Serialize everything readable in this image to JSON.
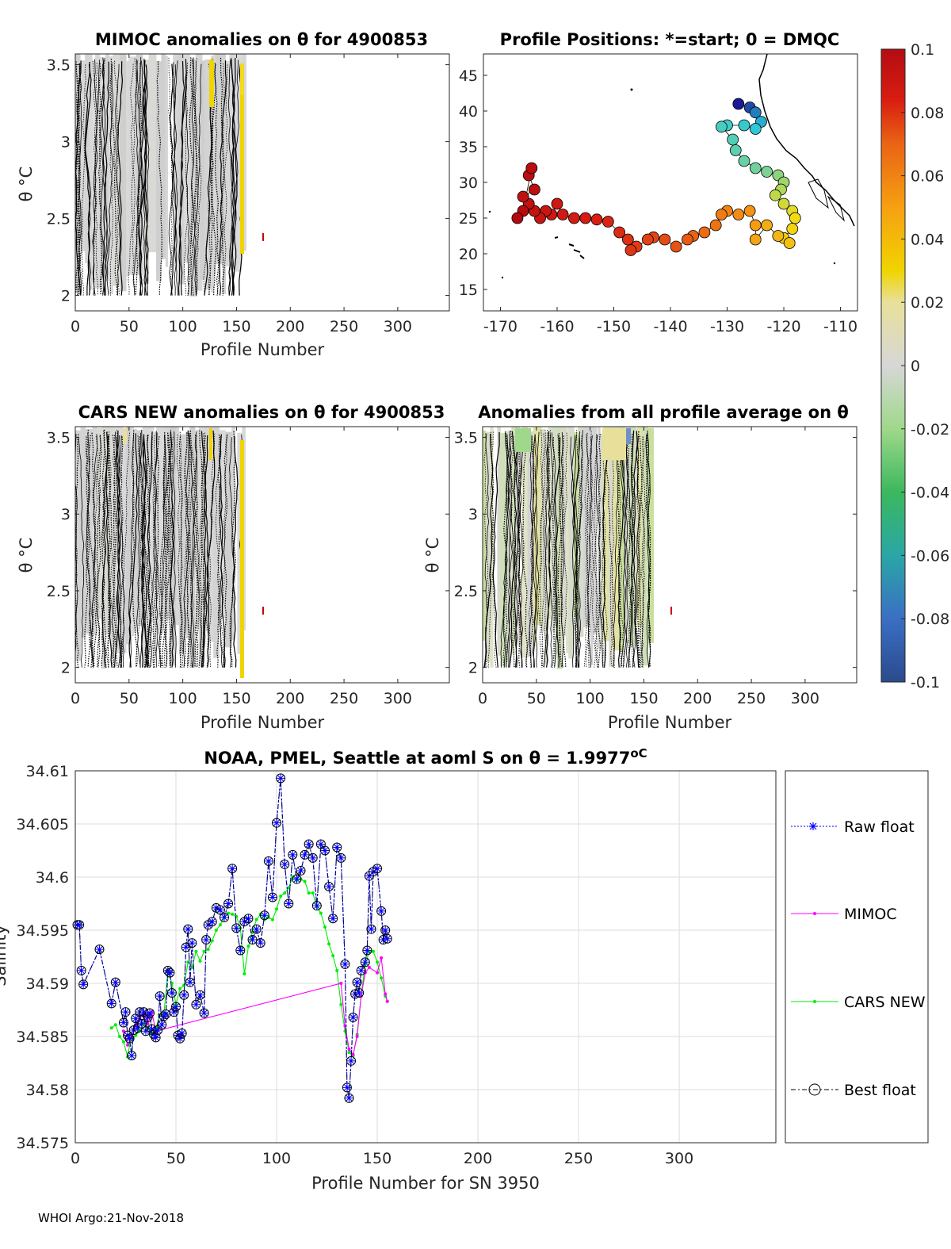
{
  "colors": {
    "raw": "#0000ff",
    "mimoc": "#ff00ff",
    "cars": "#00ee00",
    "best": "#000000"
  },
  "panels": {
    "mimoc": {
      "title": "MIMOC anomalies on θ  for 4900853",
      "xlabel": "Profile Number",
      "ylabel": "θ °C",
      "xticks": [
        "0",
        "50",
        "100",
        "150",
        "200",
        "250",
        "300"
      ],
      "yticks": [
        "3.5",
        "3",
        "2.5",
        "2"
      ]
    },
    "positions": {
      "title": "Profile Positions: *=start; 0 = DMQC",
      "xticks": [
        "-170",
        "-160",
        "-150",
        "-140",
        "-130",
        "-120",
        "-110"
      ],
      "yticks": [
        "45",
        "40",
        "35",
        "30",
        "25",
        "20",
        "15"
      ]
    },
    "cars": {
      "title": "CARS NEW anomalies on θ for 4900853",
      "xlabel": "Profile Number",
      "ylabel": "θ °C",
      "xticks": [
        "0",
        "50",
        "100",
        "150",
        "200",
        "250",
        "300"
      ],
      "yticks": [
        "3.5",
        "3",
        "2.5",
        "2"
      ]
    },
    "allavg": {
      "title": "Anomalies from all profile average on θ",
      "xlabel": "Profile Number",
      "ylabel": "θ °C",
      "xticks": [
        "0",
        "50",
        "100",
        "150",
        "200",
        "250",
        "300"
      ],
      "yticks": [
        "3.5",
        "3",
        "2.5",
        "2"
      ]
    }
  },
  "colorbar": {
    "ticks": [
      "0.1",
      "0.08",
      "0.06",
      "0.04",
      "0.02",
      "0",
      "-0.02",
      "-0.04",
      "-0.06",
      "-0.08",
      "-0.1"
    ]
  },
  "legend": {
    "raw": "Raw float",
    "mimoc": "MIMOC",
    "cars": "CARS NEW",
    "best": "Best float"
  },
  "footer": "WHOI Argo:21-Nov-2018",
  "chart_data": {
    "type": "line",
    "title": "NOAA, PMEL, Seattle at aoml S on θ = 1.9977",
    "title_unit": "oC",
    "xlabel": "Profile Number for SN 3950",
    "ylabel": "Salinity",
    "xlim": [
      0,
      348
    ],
    "ylim": [
      34.575,
      34.61
    ],
    "xticks": [
      "0",
      "50",
      "100",
      "150",
      "200",
      "250",
      "300"
    ],
    "yticks": [
      "34.61",
      "34.605",
      "34.6",
      "34.595",
      "34.59",
      "34.585",
      "34.58",
      "34.575"
    ],
    "grid": true,
    "legend_position": "right",
    "series": [
      {
        "name": "Raw float",
        "x": [
          1,
          2,
          3,
          4,
          12,
          18,
          20,
          24,
          25,
          26,
          27,
          28,
          29,
          30,
          31,
          32,
          33,
          34,
          35,
          36,
          37,
          38,
          39,
          40,
          41,
          42,
          43,
          44,
          45,
          46,
          47,
          48,
          49,
          50,
          51,
          52,
          53,
          54,
          55,
          56,
          57,
          58,
          60,
          62,
          64,
          65,
          66,
          68,
          70,
          72,
          74,
          76,
          78,
          80,
          82,
          84,
          86,
          88,
          90,
          92,
          94,
          96,
          98,
          100,
          102,
          104,
          106,
          108,
          110,
          112,
          114,
          116,
          118,
          120,
          122,
          124,
          126,
          128,
          130,
          132,
          134,
          135,
          136,
          137,
          138,
          139,
          140,
          141,
          142,
          144,
          145,
          146,
          147,
          148,
          150,
          152,
          153,
          154,
          155
        ],
        "y": [
          34.5955,
          34.5955,
          34.5912,
          34.5899,
          34.5932,
          34.5881,
          34.5901,
          34.5863,
          34.5873,
          34.5851,
          34.5848,
          34.5832,
          34.5856,
          34.5867,
          34.5858,
          34.5873,
          34.5862,
          34.5873,
          34.5855,
          34.5868,
          34.5872,
          34.5857,
          34.5852,
          34.5849,
          34.5856,
          34.5888,
          34.5861,
          34.5869,
          34.5871,
          34.5912,
          34.591,
          34.5891,
          34.5873,
          34.5878,
          34.5851,
          34.5848,
          34.5853,
          34.5889,
          34.5934,
          34.5951,
          34.5901,
          34.5938,
          34.588,
          34.5889,
          34.5872,
          34.5941,
          34.5955,
          34.5958,
          34.5971,
          34.5969,
          34.5962,
          34.5975,
          34.6008,
          34.5952,
          34.5931,
          34.5958,
          34.5961,
          34.5941,
          34.5951,
          34.5938,
          34.5964,
          34.6015,
          34.5981,
          34.6051,
          34.6093,
          34.6012,
          34.5975,
          34.6021,
          34.5998,
          34.6006,
          34.6021,
          34.6031,
          34.6018,
          34.5973,
          34.6031,
          34.6025,
          34.5991,
          34.5961,
          34.6028,
          34.6018,
          34.5918,
          34.5802,
          34.5792,
          34.5827,
          34.5868,
          34.589,
          34.5901,
          34.5891,
          34.5912,
          34.592,
          34.5931,
          34.6001,
          34.5951,
          34.6005,
          34.6008,
          34.5968,
          34.5941,
          34.595,
          34.5942
        ]
      },
      {
        "name": "MIMOC",
        "x": [
          24,
          26,
          28,
          30,
          32,
          34,
          36,
          38,
          40,
          132,
          134,
          136,
          138,
          140,
          142,
          144,
          146,
          150,
          152,
          154,
          155
        ],
        "y": [
          34.5855,
          34.5842,
          34.585,
          34.5861,
          34.5868,
          34.5872,
          34.5862,
          34.5873,
          34.5855,
          34.59,
          34.586,
          34.5838,
          34.5833,
          34.585,
          34.5888,
          34.591,
          34.5915,
          34.591,
          34.5924,
          34.589,
          34.5883
        ]
      },
      {
        "name": "CARS NEW",
        "x": [
          18,
          20,
          22,
          24,
          26,
          27,
          28,
          30,
          32,
          34,
          36,
          38,
          40,
          42,
          44,
          46,
          48,
          50,
          52,
          54,
          56,
          58,
          60,
          62,
          64,
          66,
          68,
          70,
          72,
          74,
          76,
          78,
          80,
          82,
          84,
          86,
          88,
          90,
          92,
          94,
          96,
          98,
          100,
          102,
          104,
          106,
          108,
          110,
          112,
          114,
          116,
          118,
          120,
          122,
          124,
          126,
          128,
          130,
          132,
          134,
          136,
          138,
          140,
          142,
          144,
          146,
          148,
          150,
          152,
          154,
          155
        ],
        "y": [
          34.5858,
          34.5861,
          34.585,
          34.5845,
          34.5831,
          34.5842,
          34.5848,
          34.5851,
          34.5855,
          34.5862,
          34.5858,
          34.5852,
          34.5858,
          34.587,
          34.5871,
          34.5912,
          34.59,
          34.588,
          34.5895,
          34.5898,
          34.592,
          34.5915,
          34.593,
          34.5921,
          34.593,
          34.5932,
          34.594,
          34.595,
          34.5955,
          34.5962,
          34.5966,
          34.5965,
          34.5963,
          34.5952,
          34.5909,
          34.5935,
          34.5948,
          34.596,
          34.5965,
          34.596,
          34.5962,
          34.596,
          34.597,
          34.5982,
          34.5985,
          34.599,
          34.6,
          34.5997,
          34.5998,
          34.5996,
          34.5985,
          34.5985,
          34.5972,
          34.5966,
          34.5953,
          34.5937,
          34.5926,
          34.5912,
          34.588,
          34.5855,
          34.5835,
          34.5832,
          34.5852,
          34.5888,
          34.5918,
          34.593,
          34.593,
          34.592,
          34.5905,
          34.5888,
          34.5883
        ]
      }
    ],
    "best_float_note": "Best float coincides with Raw float series"
  }
}
